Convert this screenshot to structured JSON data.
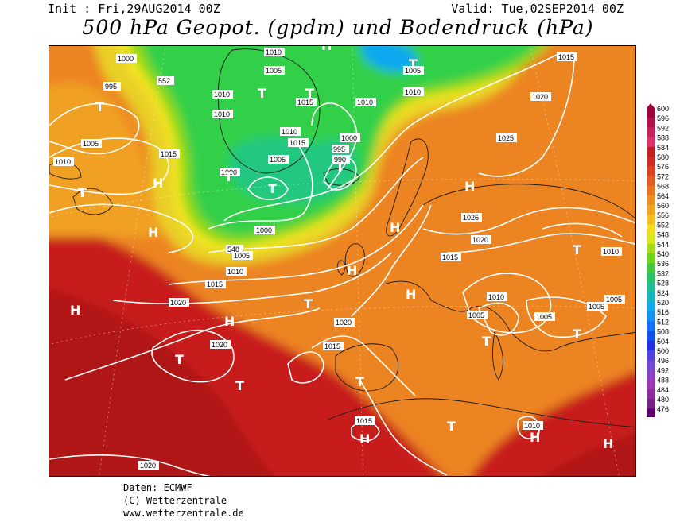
{
  "header": {
    "init": "Init : Fri,29AUG2014 00Z",
    "valid": "Valid: Tue,02SEP2014 00Z",
    "title": "500 hPa Geopot. (gpdm) und Bodendruck (hPa)"
  },
  "footer": {
    "line1": "Daten: ECMWF",
    "line2": "(C) Wetterzentrale",
    "line3": "www.wetterzentrale.de"
  },
  "colors": {
    "c600": "#b0003c",
    "c560": "#e8b020",
    "c548": "#8cd818",
    "c540": "#30d04a",
    "c524": "#10a8f0",
    "c500": "#8050e0",
    "c476": "#600070",
    "orange": "#ec8420",
    "red": "#c81e1e",
    "deepred": "#b01616"
  },
  "legend": {
    "levels": [
      "600",
      "596",
      "592",
      "588",
      "584",
      "580",
      "576",
      "572",
      "568",
      "564",
      "560",
      "556",
      "552",
      "548",
      "544",
      "540",
      "536",
      "532",
      "528",
      "524",
      "520",
      "516",
      "512",
      "508",
      "504",
      "500",
      "496",
      "492",
      "488",
      "484",
      "480",
      "476"
    ]
  },
  "map": {
    "pressure_labels": [
      "1000",
      "995",
      "552",
      "1010",
      "1015",
      "1005",
      "1010",
      "1020",
      "1005",
      "1010",
      "1010",
      "1015",
      "1010",
      "1010",
      "1015",
      "1005",
      "1005",
      "1000",
      "995",
      "990",
      "1010",
      "1025",
      "1000",
      "1005",
      "1010",
      "1000",
      "548",
      "1005",
      "1010",
      "1015",
      "1020",
      "1025",
      "1015",
      "1010",
      "1020",
      "1015",
      "1020",
      "1020",
      "1015",
      "1010",
      "1005",
      "1005",
      "1005",
      "1005",
      "1015",
      "1010",
      "1020"
    ],
    "pressure_systems": [
      "T",
      "T",
      "T",
      "T",
      "T",
      "T",
      "T",
      "T",
      "T",
      "T",
      "T",
      "T",
      "T",
      "T",
      "T",
      "T",
      "T",
      "T",
      "H",
      "H",
      "H",
      "H",
      "H",
      "H",
      "H",
      "H",
      "H",
      "H",
      "H",
      "H",
      "H",
      "H",
      "H",
      "H",
      "H",
      "H",
      "H",
      "H"
    ]
  }
}
